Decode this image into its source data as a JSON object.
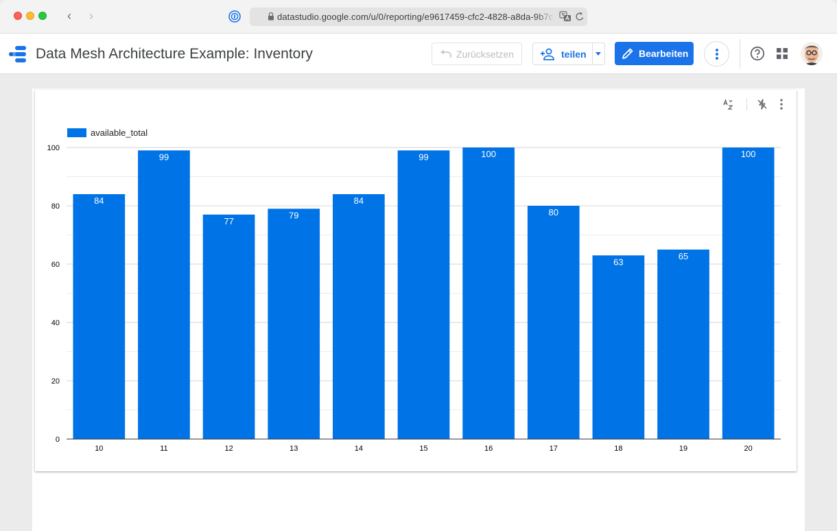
{
  "browser": {
    "url": "datastudio.google.com/u/0/reporting/e9617459-cfc2-4828-a8da-9b7c"
  },
  "header": {
    "title": "Data Mesh Architecture Example: Inventory",
    "reset_label": "Zurücksetzen",
    "share_label": "teilen",
    "edit_label": "Bearbeiten"
  },
  "colors": {
    "accent": "#1a73e8",
    "bar": "#0073e6"
  },
  "icons": {
    "browser": [
      "back-icon",
      "forward-icon",
      "password-manager-icon",
      "lock-icon",
      "translate-icon",
      "reload-icon"
    ],
    "header": [
      "data-studio-logo",
      "undo-icon",
      "add-person-icon",
      "dropdown-caret-icon",
      "pencil-icon",
      "more-vert-icon",
      "help-icon",
      "apps-grid-icon",
      "avatar"
    ],
    "chart": [
      "sort-icon",
      "drill-off-icon",
      "more-vert-icon"
    ]
  },
  "chart_data": {
    "type": "bar",
    "categories": [
      "10",
      "11",
      "12",
      "13",
      "14",
      "15",
      "16",
      "17",
      "18",
      "19",
      "20"
    ],
    "series": [
      {
        "name": "available_total",
        "values": [
          84,
          99,
          77,
          79,
          84,
          99,
          100,
          80,
          63,
          65,
          100
        ]
      }
    ],
    "ylim": [
      0,
      100
    ],
    "yticks": [
      0,
      20,
      40,
      60,
      80,
      100
    ],
    "gridlines": "horizontal",
    "legend": "top-left",
    "data_labels": true
  }
}
